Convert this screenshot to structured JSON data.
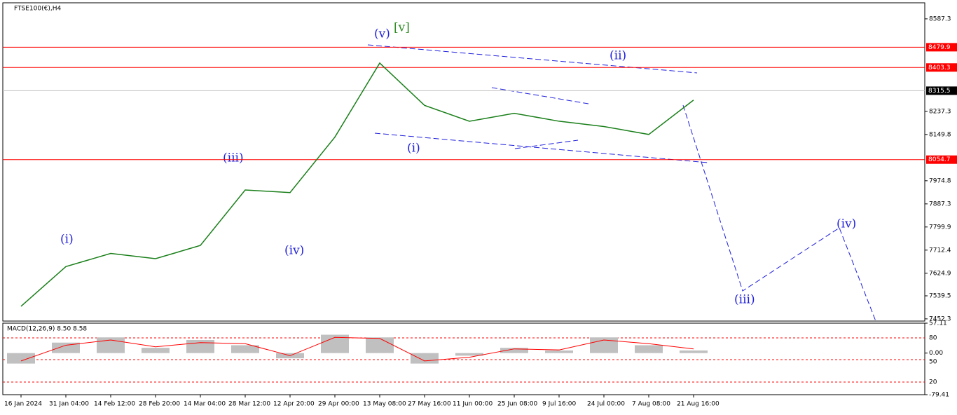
{
  "chart_data": [
    {
      "type": "line",
      "title": "FTSE100(€),H4",
      "color": "#1a7f1a",
      "categories": [
        "16 Jan 2024",
        "31 Jan 04:00",
        "14 Feb 12:00",
        "28 Feb 20:00",
        "14 Mar 04:00",
        "28 Mar 12:00",
        "12 Apr 20:00",
        "29 Apr 00:00",
        "13 May 08:00",
        "27 May 16:00",
        "11 Jun 00:00",
        "25 Jun 08:00",
        "9 Jul 16:00",
        "24 Jul 00:00",
        "7 Aug 08:00",
        "21 Aug 16:00"
      ],
      "values": [
        7500,
        7650,
        7700,
        7680,
        7730,
        7940,
        7930,
        8140,
        8420,
        8260,
        8200,
        8230,
        8200,
        8180,
        8150,
        8280
      ],
      "ylim": [
        7444,
        8648
      ],
      "yticks": [
        8587.3,
        8237.3,
        8149.8,
        7974.8,
        7887.3,
        7799.9,
        7712.4,
        7624.9,
        7539.5,
        7452.3
      ],
      "levels": [
        8479.9,
        8403.3,
        8054.7
      ],
      "level_color": "#ff0000",
      "current_price": 8315.5,
      "annotations": [
        "(v)",
        "[v]",
        "(ii)",
        "(i)",
        "(iii)",
        "(iv)",
        "(i)",
        "(iii)",
        "(iv)"
      ]
    },
    {
      "type": "macd",
      "title": "MACD(12,26,9) 8.50 8.58",
      "series": [
        {
          "color": "#c0c0c0",
          "values": [
            -20,
            20,
            30,
            10,
            25,
            15,
            -10,
            35,
            30,
            -20,
            -5,
            10,
            5,
            30,
            15,
            5
          ]
        },
        {
          "color": "#ff0000",
          "values": [
            -15,
            15,
            25,
            12,
            20,
            18,
            -5,
            30,
            28,
            -15,
            -8,
            8,
            6,
            25,
            18,
            8
          ]
        }
      ],
      "ylim": [
        -79.41,
        57.11
      ],
      "yticks": [
        57.11,
        {
          "value": 0,
          "label": "0.00"
        },
        -79.41
      ],
      "level_labels": [
        "80",
        "50",
        "20"
      ]
    }
  ]
}
